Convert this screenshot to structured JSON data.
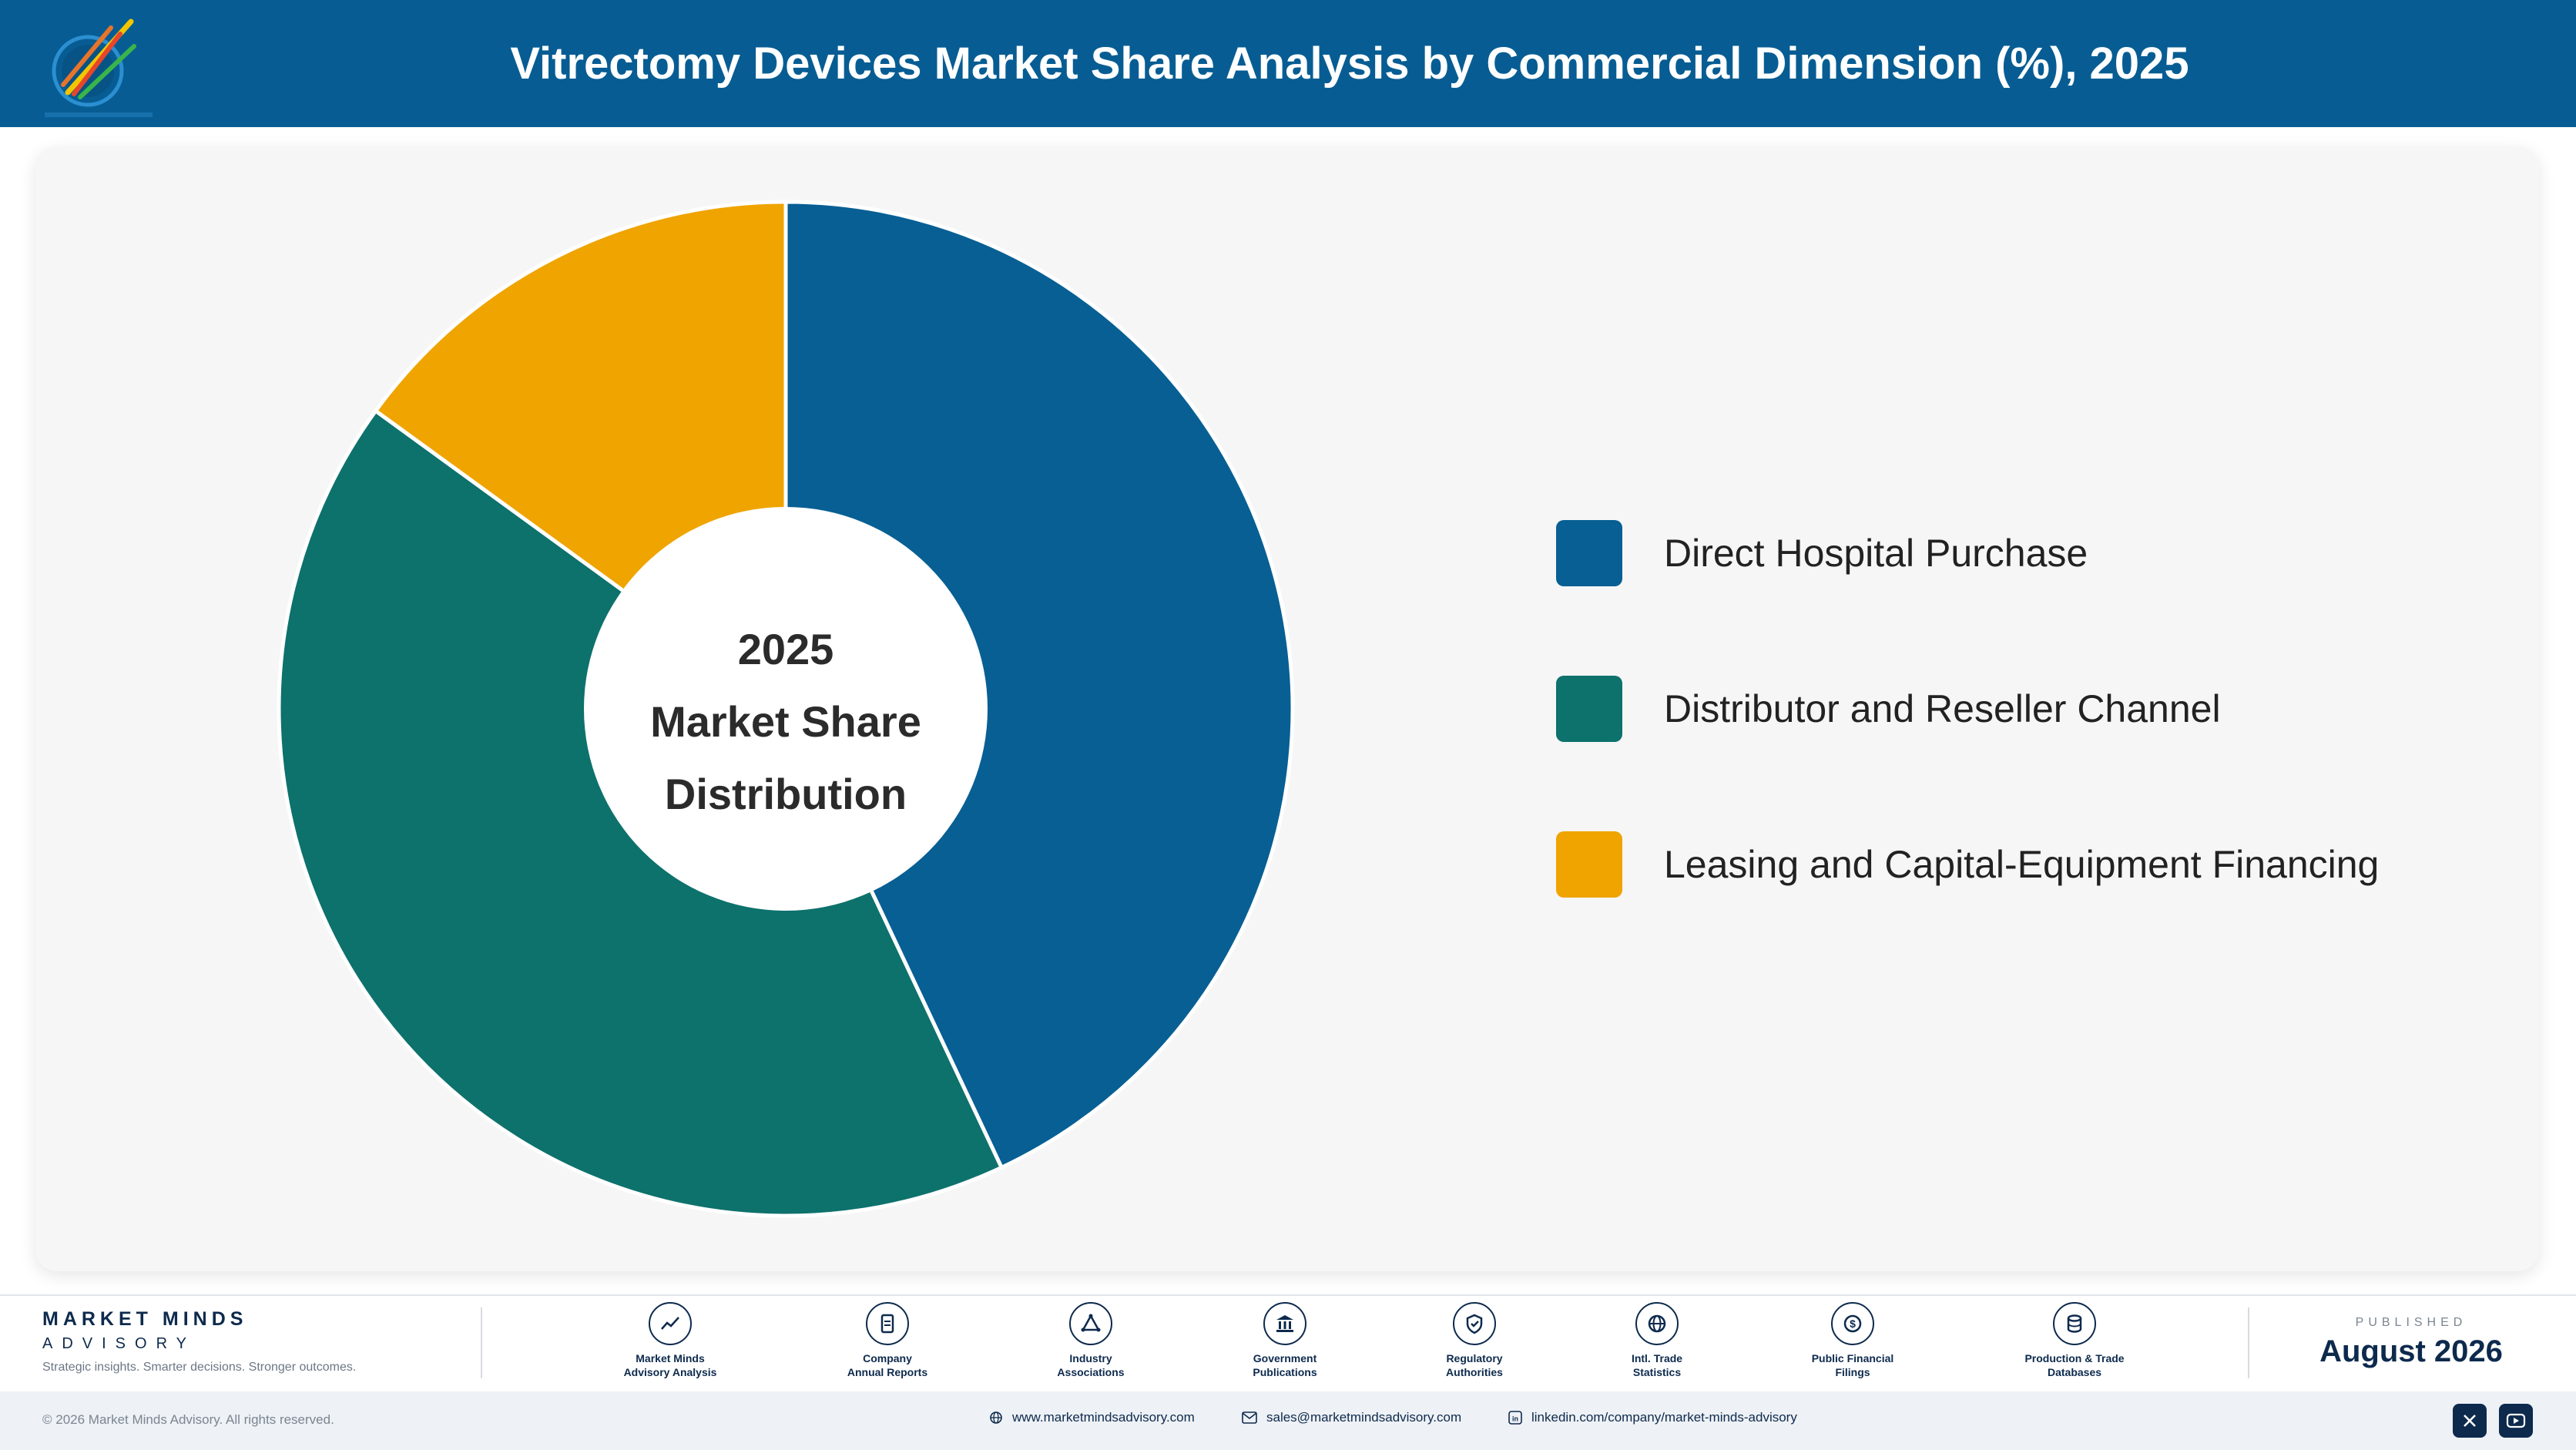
{
  "header": {
    "title": "Vitrectomy Devices Market Share Analysis by Commercial Dimension (%), 2025",
    "logo_icon": "market-minds-logo"
  },
  "chart_data": {
    "type": "pie",
    "center_label": [
      "2025",
      "Market Share",
      "Distribution"
    ],
    "categories": [
      "Direct Hospital Purchase",
      "Distributor and Reseller Channel",
      "Leasing and Capital-Equipment Financing"
    ],
    "values": [
      43,
      42,
      15
    ],
    "colors": [
      "#075f94",
      "#0d716c",
      "#efa400"
    ],
    "legend_position": "right"
  },
  "footer": {
    "brand_name": "MARKET MINDS",
    "brand_sub": "ADVISORY",
    "tagline": "Strategic insights. Smarter decisions. Stronger outcomes.",
    "sources": [
      {
        "line1": "Market Minds",
        "line2": "Advisory Analysis",
        "icon": "trend-chart-icon"
      },
      {
        "line1": "Company",
        "line2": "Annual Reports",
        "icon": "document-icon"
      },
      {
        "line1": "Industry",
        "line2": "Associations",
        "icon": "network-icon"
      },
      {
        "line1": "Government",
        "line2": "Publications",
        "icon": "government-building-icon"
      },
      {
        "line1": "Regulatory",
        "line2": "Authorities",
        "icon": "shield-check-icon"
      },
      {
        "line1": "Intl. Trade",
        "line2": "Statistics",
        "icon": "globe-icon"
      },
      {
        "line1": "Public Financial",
        "line2": "Filings",
        "icon": "dollar-coin-icon"
      },
      {
        "line1": "Production & Trade",
        "line2": "Databases",
        "icon": "database-icon"
      }
    ],
    "published_label": "PUBLISHED",
    "published_date": "August 2026",
    "copyright": "© 2026 Market Minds Advisory. All rights reserved.",
    "website": "www.marketmindsadvisory.com",
    "email": "sales@marketmindsadvisory.com",
    "linkedin": "linkedin.com/company/market-minds-advisory",
    "social_icons": [
      "x-icon",
      "youtube-icon"
    ]
  }
}
